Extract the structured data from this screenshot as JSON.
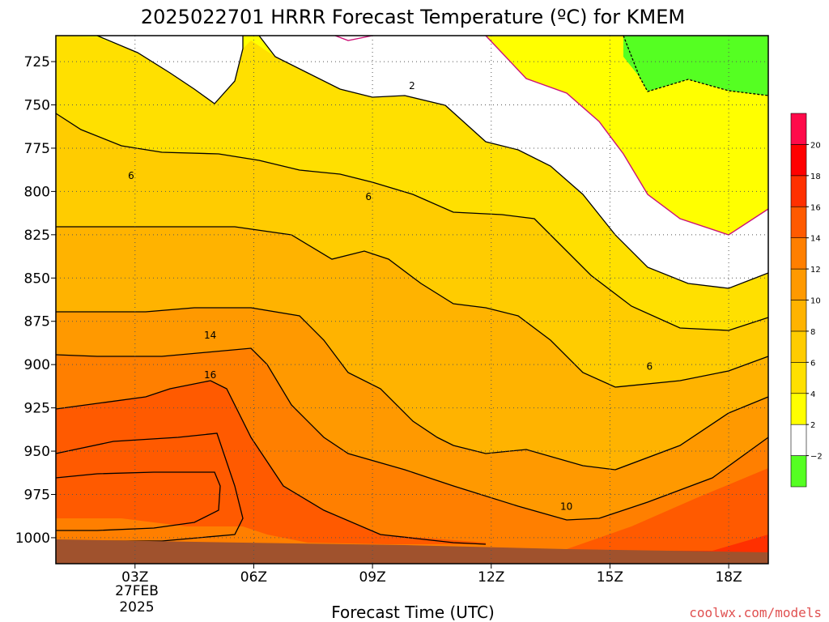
{
  "chart_data": {
    "type": "heatmap",
    "title": "2025022701 HRRR Forecast Temperature (ºC) for KMEM",
    "xlabel": "Forecast Time (UTC)",
    "ylabel": "",
    "y_axis": "pressure (hPa), inverted",
    "ylim": [
      1015,
      710
    ],
    "xlim": [
      1,
      19
    ],
    "x_ticks": [
      {
        "hour": 3,
        "label": "03Z"
      },
      {
        "hour": 6,
        "label": "06Z"
      },
      {
        "hour": 9,
        "label": "09Z"
      },
      {
        "hour": 12,
        "label": "12Z"
      },
      {
        "hour": 15,
        "label": "15Z"
      },
      {
        "hour": 18,
        "label": "18Z"
      }
    ],
    "date_label": [
      "27FEB",
      "2025"
    ],
    "y_ticks": [
      725,
      750,
      775,
      800,
      825,
      850,
      875,
      900,
      925,
      950,
      975,
      1000
    ],
    "grid": true,
    "colorbar": {
      "levels": [
        "-2",
        "2",
        "4",
        "6",
        "8",
        "10",
        "12",
        "14",
        "16",
        "18",
        "20"
      ],
      "colors": [
        "#55ff22",
        "#ffffff",
        "#ffff00",
        "#ffe000",
        "#ffcc00",
        "#ffb300",
        "#ff9900",
        "#ff7f00",
        "#ff5a00",
        "#ff3000",
        "#ff0000",
        "#ff0a4a"
      ]
    },
    "contour_labels": [
      {
        "text": "2",
        "hour": 10.0,
        "pressure": 739
      },
      {
        "text": "6",
        "hour": 2.9,
        "pressure": 791
      },
      {
        "text": "6",
        "hour": 8.9,
        "pressure": 803
      },
      {
        "text": "6",
        "hour": 16.0,
        "pressure": 901
      },
      {
        "text": "10",
        "hour": 13.9,
        "pressure": 982
      },
      {
        "text": "14",
        "hour": 4.9,
        "pressure": 883
      },
      {
        "text": "16",
        "hour": 4.9,
        "pressure": 906
      }
    ]
  },
  "credit": "coolwx.com/models"
}
